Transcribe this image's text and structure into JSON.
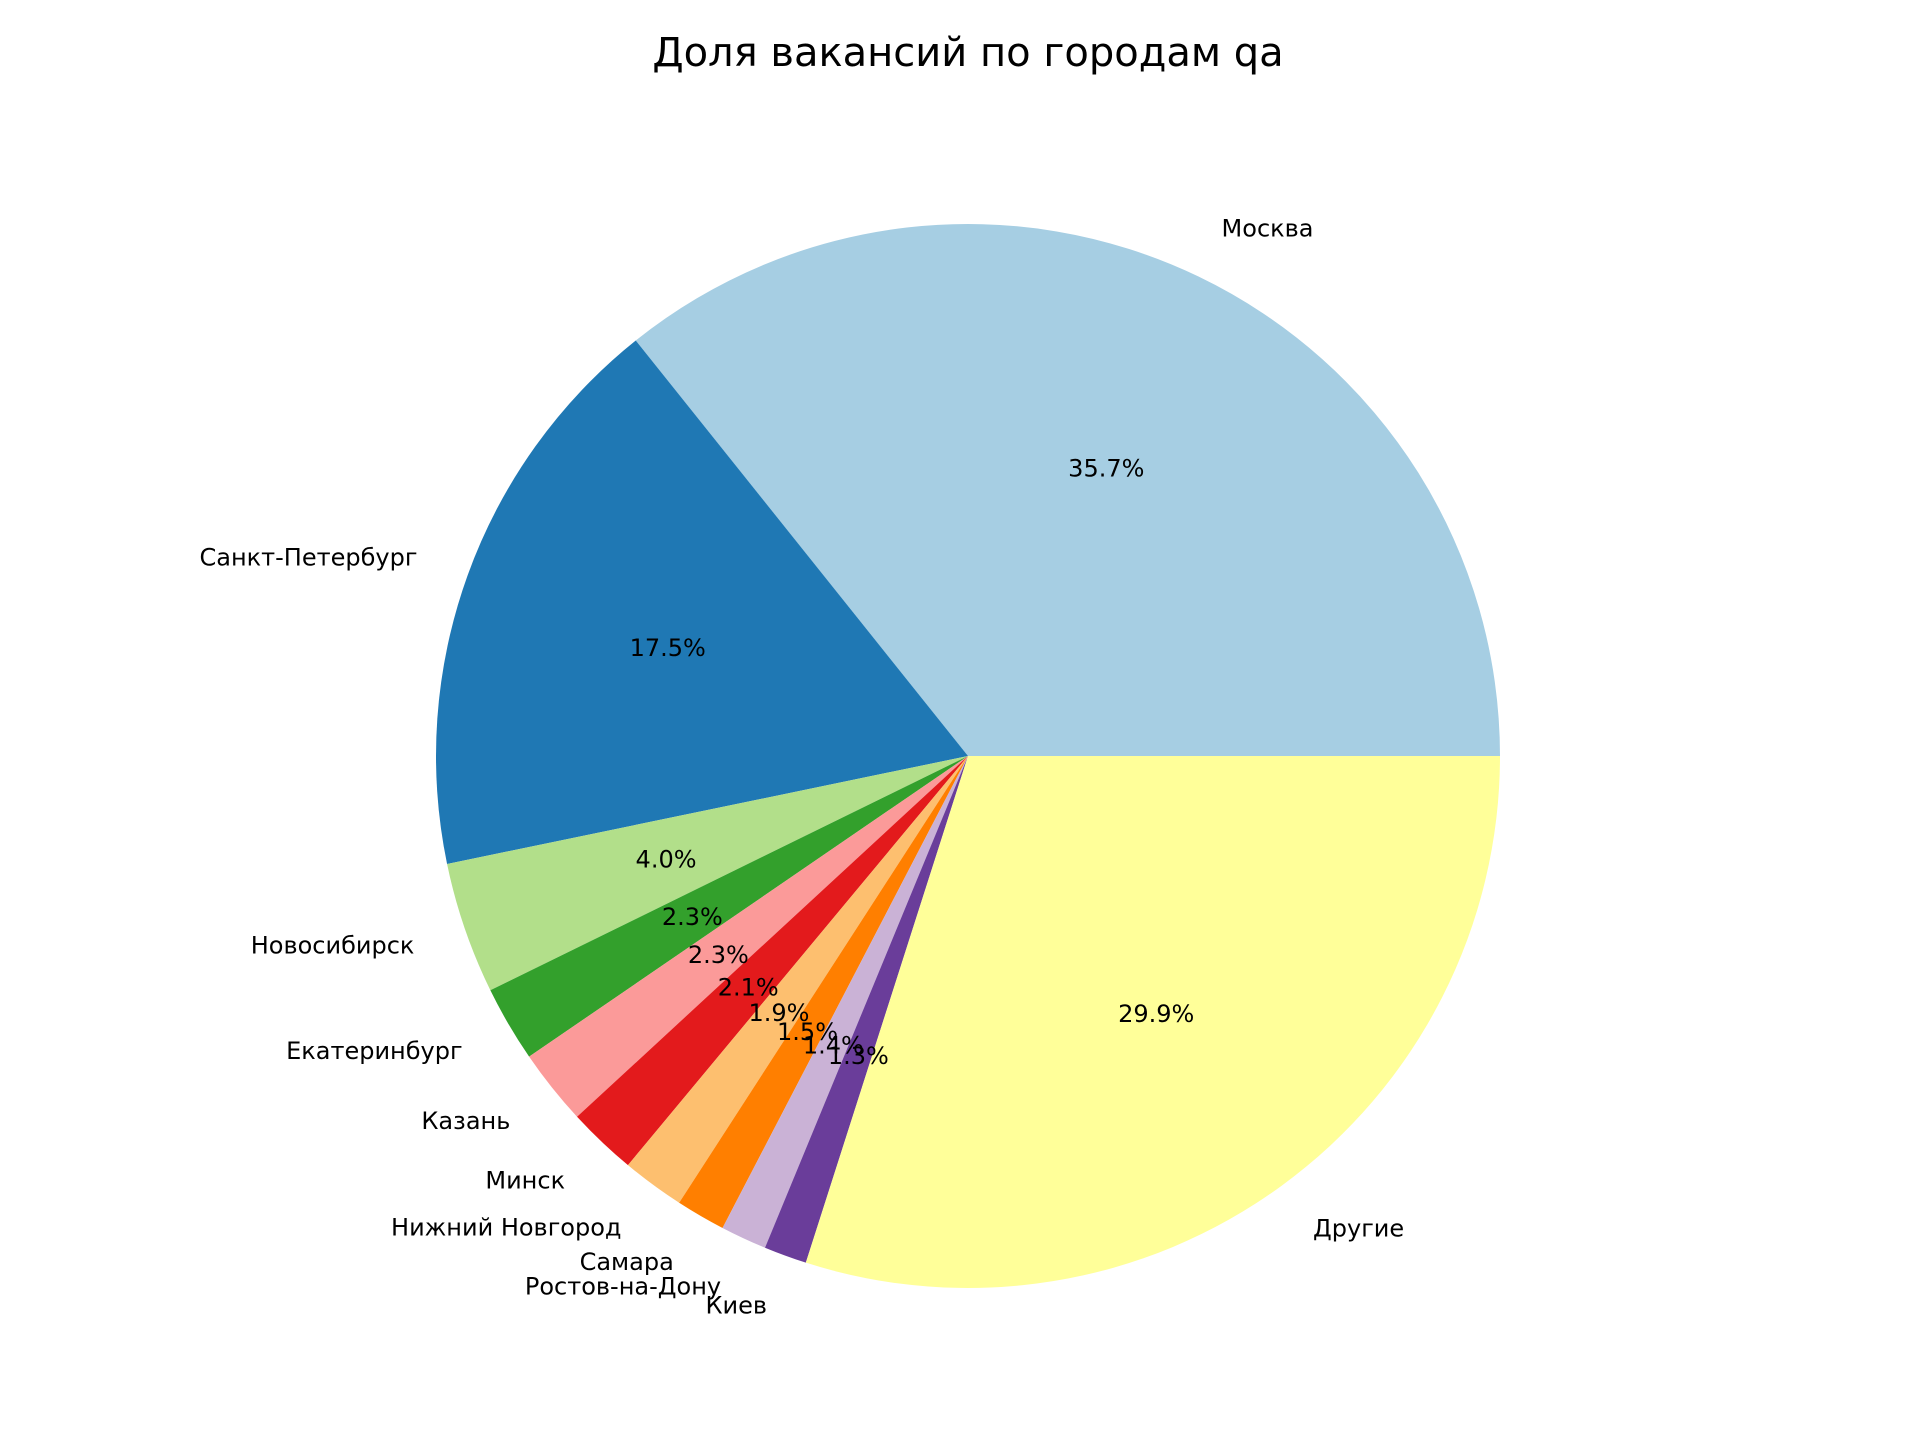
{
  "chart_data": {
    "type": "pie",
    "title": "Доля вакансий по городам qa",
    "start_angle": "east, counterclockwise",
    "slices": [
      {
        "label": "Москва",
        "value": 35.7,
        "pct_label": "35.7%",
        "color": "#a6cee3"
      },
      {
        "label": "Санкт-Петербург",
        "value": 17.5,
        "pct_label": "17.5%",
        "color": "#1f78b4"
      },
      {
        "label": "Новосибирск",
        "value": 4.0,
        "pct_label": "4.0%",
        "color": "#b2df8a"
      },
      {
        "label": "Екатеринбург",
        "value": 2.3,
        "pct_label": "2.3%",
        "color": "#33a02c"
      },
      {
        "label": "Казань",
        "value": 2.3,
        "pct_label": "2.3%",
        "color": "#fb9a99"
      },
      {
        "label": "Минск",
        "value": 2.1,
        "pct_label": "2.1%",
        "color": "#e31a1c"
      },
      {
        "label": "Нижний Новгород",
        "value": 1.9,
        "pct_label": "1.9%",
        "color": "#fdbf6f"
      },
      {
        "label": "Самара",
        "value": 1.5,
        "pct_label": "1.5%",
        "color": "#ff7f00"
      },
      {
        "label": "Ростов-на-Дону",
        "value": 1.4,
        "pct_label": "1.4%",
        "color": "#cab2d6"
      },
      {
        "label": "Киев",
        "value": 1.3,
        "pct_label": "1.3%",
        "color": "#6a3d9a"
      },
      {
        "label": "Другие",
        "value": 29.9,
        "pct_label": "29.9%",
        "color": "#ffff99"
      }
    ]
  }
}
